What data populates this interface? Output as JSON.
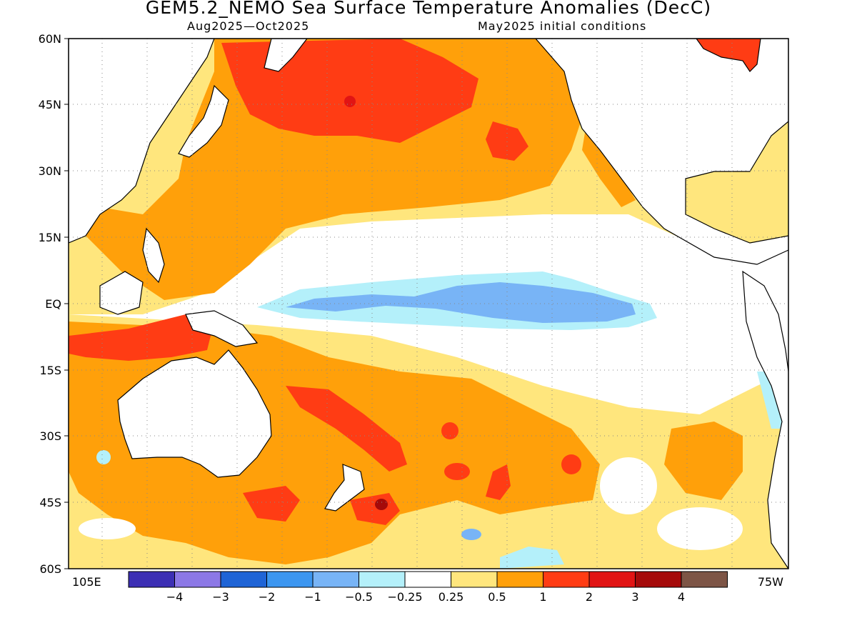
{
  "title": "GEM5.2_NEMO Sea Surface Temperature Anomalies (DecC)",
  "subtitle_left": "Aug2025—Oct2025",
  "subtitle_right": "May2025 initial conditions",
  "axes": {
    "lat_ticks": [
      "60N",
      "45N",
      "30N",
      "15N",
      "EQ",
      "15S",
      "30S",
      "45S",
      "60S"
    ],
    "lon_left_label": "105E",
    "lon_right_label": "75W"
  },
  "colorbar": {
    "colors": [
      "#3c2fb4",
      "#8c78e6",
      "#1f64d6",
      "#3c96f0",
      "#78b4f6",
      "#b4f0fa",
      "#ffffff",
      "#ffe67d",
      "#ffa00a",
      "#ff3c14",
      "#e11414",
      "#a50a0a",
      "#7d5546"
    ],
    "labels": [
      "-4",
      "-3",
      "-2",
      "-1",
      "-0.5",
      "-0.25",
      "0.25",
      "0.5",
      "1",
      "2",
      "3",
      "4"
    ]
  }
}
